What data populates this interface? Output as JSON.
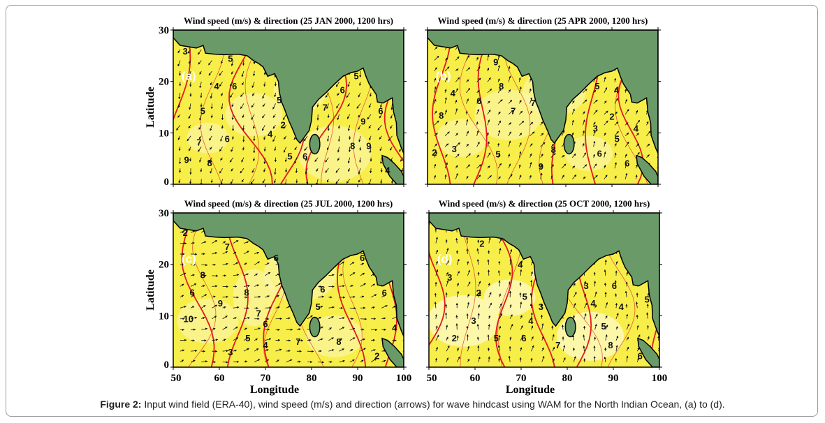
{
  "figure": {
    "panels": [
      {
        "id": "a",
        "label": "(a)",
        "title": "Wind speed (m/s) & direction (25 JAN 2000, 1200 hrs)",
        "arrow_direction_deg": 200,
        "contour_labels": [
          "3",
          "5",
          "6",
          "4",
          "5",
          "7",
          "6",
          "9",
          "8",
          "5",
          "2",
          "4",
          "5",
          "6",
          "5",
          "6",
          "7",
          "9",
          "8",
          "9",
          "6",
          "4"
        ]
      },
      {
        "id": "b",
        "label": "(b)",
        "title": "Wind speed (m/s) & direction (25 APR 2000, 1200 hrs)",
        "arrow_direction_deg": 30,
        "contour_labels": [
          "9",
          "8",
          "4",
          "6",
          "7",
          "8",
          "3",
          "2",
          "5",
          "8",
          "9",
          "6",
          "5",
          "4",
          "3",
          "5",
          "4",
          "6",
          "2",
          "7"
        ]
      },
      {
        "id": "c",
        "label": "(c)",
        "title": "Wind speed (m/s) & direction (25 JUL 2000, 1200 hrs)",
        "arrow_direction_deg": 75,
        "contour_labels": [
          "2",
          "7",
          "8",
          "6",
          "9",
          "10",
          "8",
          "7",
          "6",
          "5",
          "4",
          "3",
          "6",
          "5",
          "6",
          "8",
          "6",
          "6",
          "4",
          "2",
          "7"
        ]
      },
      {
        "id": "d",
        "label": "(d)",
        "title": "Wind speed (m/s) & direction (25 OCT 2000, 1200 hrs)",
        "arrow_direction_deg": 10,
        "contour_labels": [
          "2",
          "3",
          "2",
          "3",
          "2",
          "4",
          "5",
          "3",
          "4",
          "5",
          "6",
          "7",
          "8",
          "5",
          "4",
          "3",
          "6",
          "4",
          "5",
          "6"
        ]
      }
    ],
    "axes": {
      "xlabel": "Longitude",
      "ylabel": "Latitude",
      "xticks": [
        "50",
        "60",
        "70",
        "80",
        "90",
        "100"
      ],
      "yticks": [
        "0",
        "10",
        "20",
        "30"
      ]
    }
  },
  "caption": {
    "prefix": "Figure 2:",
    "text": " Input wind field (ERA-40), wind speed (m/s) and direction (arrows) for wave hindcast using WAM for the North Indian Ocean, (a) to (d)."
  },
  "colors": {
    "land": "#6a9a68",
    "ocean": "#f8ee4a",
    "ocean_light": "#fcf7b4",
    "contour": "#e41a1c",
    "arrow": "#111111"
  }
}
